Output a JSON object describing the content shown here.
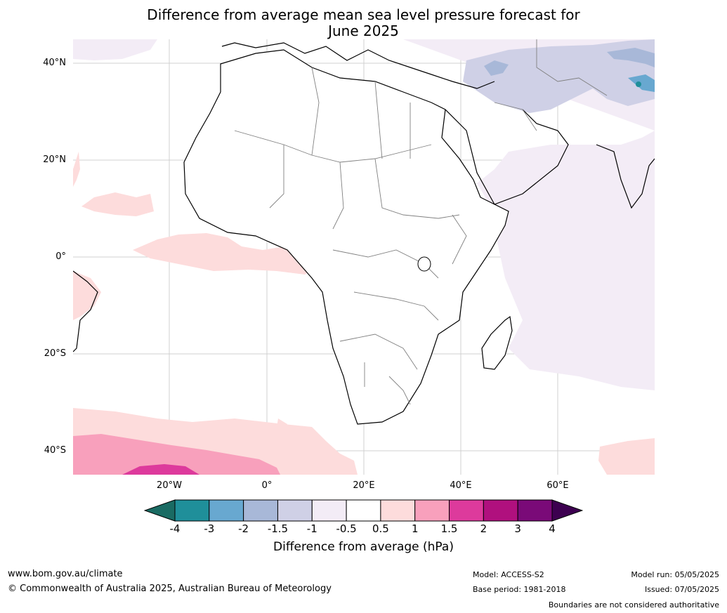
{
  "title_line1": "Difference from average mean sea level pressure forecast for",
  "title_line2": "June 2025",
  "lat_labels": [
    "40°N",
    "20°N",
    "0°",
    "20°S",
    "40°S"
  ],
  "lon_labels": [
    "20°W",
    "0°",
    "20°E",
    "40°E",
    "60°E"
  ],
  "colorbar": {
    "ticks": [
      "-4",
      "-3",
      "-2",
      "-1.5",
      "-1",
      "-0.5",
      "0.5",
      "1",
      "1.5",
      "2",
      "3",
      "4"
    ],
    "colors": [
      "#1a6b63",
      "#1f8f9a",
      "#68a8d0",
      "#a8b8d8",
      "#cfd0e6",
      "#f3ecf6",
      "#ffffff",
      "#fddcdc",
      "#f8a0bc",
      "#dd3a9c",
      "#b0107e",
      "#7a0a78",
      "#3d0050"
    ],
    "label": "Difference from average (hPa)"
  },
  "footer": {
    "url": "www.bom.gov.au/climate",
    "copyright": "© Commonwealth of Australia 2025, Australian Bureau of Meteorology",
    "model": "Model: ACCESS-S2",
    "base_period": "Base period: 1981-2018",
    "model_run": "Model run: 05/05/2025",
    "issued": "Issued: 07/05/2025",
    "disclaimer": "Boundaries are not considered authoritative"
  }
}
